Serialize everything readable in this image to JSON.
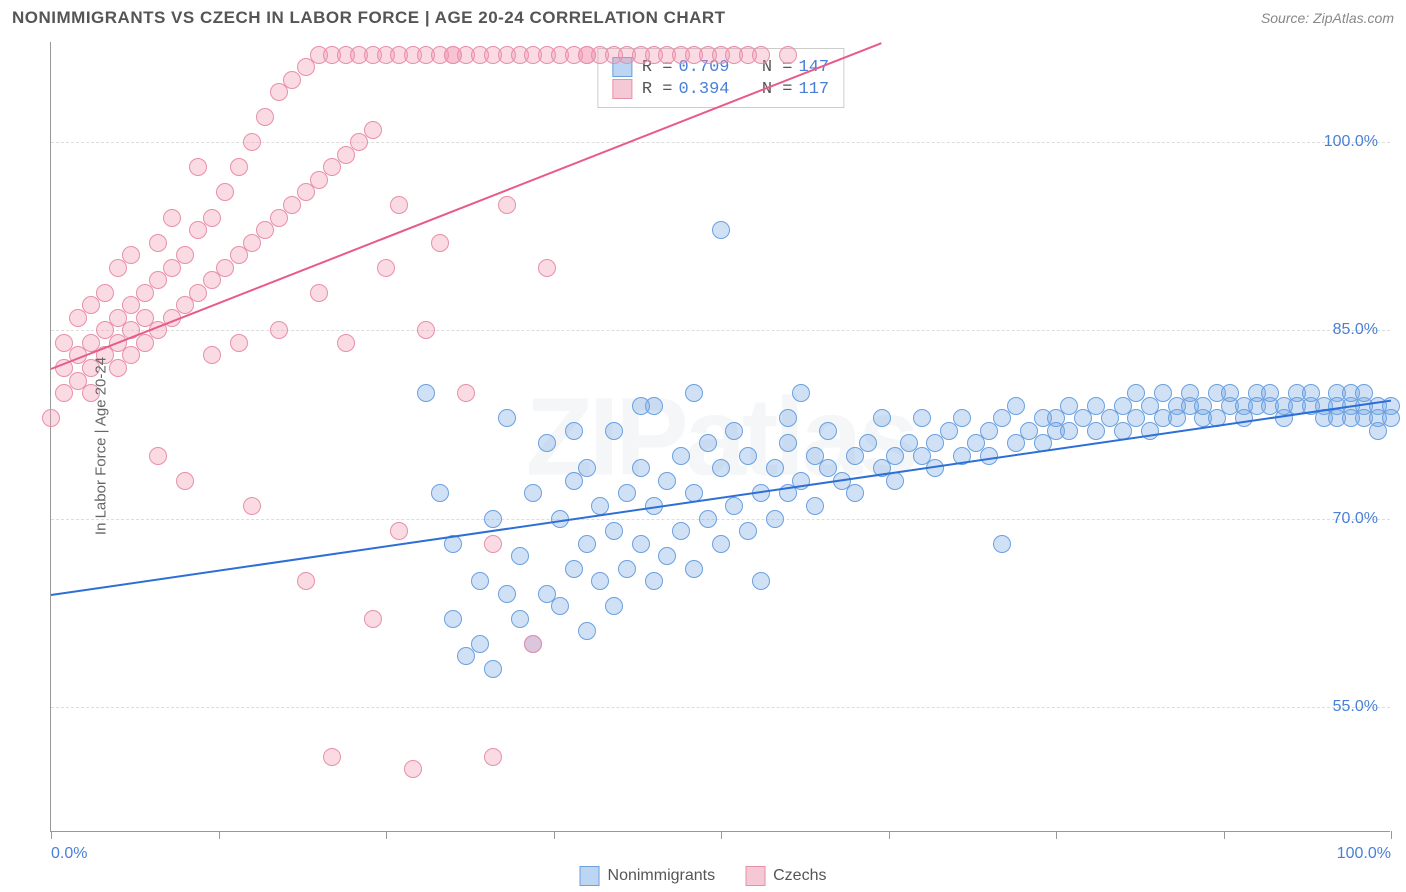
{
  "title": "NONIMMIGRANTS VS CZECH IN LABOR FORCE | AGE 20-24 CORRELATION CHART",
  "source": "Source: ZipAtlas.com",
  "ylabel": "In Labor Force | Age 20-24",
  "watermark": "ZIPatlas",
  "chart": {
    "type": "scatter",
    "xlim": [
      0,
      100
    ],
    "ylim": [
      45,
      108
    ],
    "y_gridlines": [
      55,
      70,
      85,
      100
    ],
    "y_tick_labels": [
      "55.0%",
      "70.0%",
      "85.0%",
      "100.0%"
    ],
    "x_ticks": [
      0,
      12.5,
      25,
      37.5,
      50,
      62.5,
      75,
      87.5,
      100
    ],
    "x_tick_labels": {
      "0": "0.0%",
      "100": "100.0%"
    },
    "point_radius": 9,
    "background_color": "#ffffff",
    "grid_color": "#dddddd",
    "axis_color": "#999999",
    "label_color": "#4a7fd8",
    "series": [
      {
        "name": "Nonimmigrants",
        "fill": "rgba(120,170,230,0.35)",
        "stroke": "#6aa0e0",
        "swatch_fill": "#bcd5f2",
        "swatch_stroke": "#6aa0e0",
        "trend_color": "#2d6fd6",
        "R": "0.709",
        "N": "147",
        "trend": {
          "x1": 0,
          "y1": 64,
          "x2": 100,
          "y2": 79.5
        },
        "points": [
          [
            28,
            80
          ],
          [
            29,
            72
          ],
          [
            30,
            62
          ],
          [
            30,
            68
          ],
          [
            31,
            59
          ],
          [
            32,
            60
          ],
          [
            32,
            65
          ],
          [
            33,
            58
          ],
          [
            33,
            70
          ],
          [
            34,
            64
          ],
          [
            34,
            78
          ],
          [
            35,
            62
          ],
          [
            35,
            67
          ],
          [
            36,
            60
          ],
          [
            36,
            72
          ],
          [
            37,
            64
          ],
          [
            37,
            76
          ],
          [
            38,
            63
          ],
          [
            38,
            70
          ],
          [
            39,
            66
          ],
          [
            39,
            73
          ],
          [
            40,
            61
          ],
          [
            40,
            68
          ],
          [
            40,
            74
          ],
          [
            41,
            65
          ],
          [
            41,
            71
          ],
          [
            42,
            63
          ],
          [
            42,
            69
          ],
          [
            42,
            77
          ],
          [
            43,
            66
          ],
          [
            43,
            72
          ],
          [
            44,
            68
          ],
          [
            44,
            74
          ],
          [
            45,
            65
          ],
          [
            45,
            71
          ],
          [
            45,
            79
          ],
          [
            46,
            67
          ],
          [
            46,
            73
          ],
          [
            47,
            69
          ],
          [
            47,
            75
          ],
          [
            48,
            66
          ],
          [
            48,
            72
          ],
          [
            49,
            70
          ],
          [
            49,
            76
          ],
          [
            50,
            68
          ],
          [
            50,
            74
          ],
          [
            51,
            71
          ],
          [
            51,
            77
          ],
          [
            52,
            69
          ],
          [
            52,
            75
          ],
          [
            53,
            72
          ],
          [
            53,
            65
          ],
          [
            54,
            74
          ],
          [
            54,
            70
          ],
          [
            55,
            76
          ],
          [
            55,
            72
          ],
          [
            56,
            73
          ],
          [
            57,
            75
          ],
          [
            57,
            71
          ],
          [
            58,
            74
          ],
          [
            58,
            77
          ],
          [
            59,
            73
          ],
          [
            60,
            75
          ],
          [
            60,
            72
          ],
          [
            61,
            76
          ],
          [
            62,
            74
          ],
          [
            62,
            78
          ],
          [
            63,
            75
          ],
          [
            63,
            73
          ],
          [
            64,
            76
          ],
          [
            65,
            75
          ],
          [
            65,
            78
          ],
          [
            66,
            76
          ],
          [
            66,
            74
          ],
          [
            67,
            77
          ],
          [
            68,
            75
          ],
          [
            68,
            78
          ],
          [
            69,
            76
          ],
          [
            70,
            77
          ],
          [
            70,
            75
          ],
          [
            71,
            78
          ],
          [
            71,
            68
          ],
          [
            72,
            76
          ],
          [
            72,
            79
          ],
          [
            73,
            77
          ],
          [
            74,
            78
          ],
          [
            74,
            76
          ],
          [
            75,
            78
          ],
          [
            75,
            77
          ],
          [
            76,
            79
          ],
          [
            76,
            77
          ],
          [
            77,
            78
          ],
          [
            78,
            79
          ],
          [
            78,
            77
          ],
          [
            79,
            78
          ],
          [
            80,
            79
          ],
          [
            80,
            77
          ],
          [
            81,
            78
          ],
          [
            81,
            80
          ],
          [
            82,
            79
          ],
          [
            82,
            77
          ],
          [
            83,
            78
          ],
          [
            83,
            80
          ],
          [
            84,
            79
          ],
          [
            84,
            78
          ],
          [
            85,
            79
          ],
          [
            85,
            80
          ],
          [
            86,
            78
          ],
          [
            86,
            79
          ],
          [
            87,
            80
          ],
          [
            87,
            78
          ],
          [
            88,
            79
          ],
          [
            88,
            80
          ],
          [
            89,
            79
          ],
          [
            89,
            78
          ],
          [
            90,
            80
          ],
          [
            90,
            79
          ],
          [
            91,
            79
          ],
          [
            91,
            80
          ],
          [
            92,
            79
          ],
          [
            92,
            78
          ],
          [
            93,
            80
          ],
          [
            93,
            79
          ],
          [
            94,
            79
          ],
          [
            94,
            80
          ],
          [
            95,
            79
          ],
          [
            95,
            78
          ],
          [
            96,
            80
          ],
          [
            96,
            79
          ],
          [
            96,
            78
          ],
          [
            97,
            79
          ],
          [
            97,
            80
          ],
          [
            97,
            78
          ],
          [
            98,
            79
          ],
          [
            98,
            78
          ],
          [
            98,
            80
          ],
          [
            99,
            79
          ],
          [
            99,
            78
          ],
          [
            99,
            77
          ],
          [
            100,
            79
          ],
          [
            100,
            78
          ],
          [
            48,
            80
          ],
          [
            50,
            93
          ],
          [
            39,
            77
          ],
          [
            44,
            79
          ],
          [
            55,
            78
          ],
          [
            56,
            80
          ]
        ]
      },
      {
        "name": "Czechs",
        "fill": "rgba(240,150,175,0.35)",
        "stroke": "#e890a8",
        "swatch_fill": "#f5c8d5",
        "swatch_stroke": "#e890a8",
        "trend_color": "#e85a8a",
        "R": "0.394",
        "N": "117",
        "trend": {
          "x1": 0,
          "y1": 82,
          "x2": 62,
          "y2": 108
        },
        "points": [
          [
            0,
            78
          ],
          [
            1,
            82
          ],
          [
            1,
            84
          ],
          [
            1,
            80
          ],
          [
            2,
            83
          ],
          [
            2,
            86
          ],
          [
            2,
            81
          ],
          [
            3,
            84
          ],
          [
            3,
            82
          ],
          [
            3,
            87
          ],
          [
            3,
            80
          ],
          [
            4,
            85
          ],
          [
            4,
            83
          ],
          [
            4,
            88
          ],
          [
            5,
            84
          ],
          [
            5,
            86
          ],
          [
            5,
            82
          ],
          [
            5,
            90
          ],
          [
            6,
            85
          ],
          [
            6,
            87
          ],
          [
            6,
            83
          ],
          [
            6,
            91
          ],
          [
            7,
            86
          ],
          [
            7,
            88
          ],
          [
            7,
            84
          ],
          [
            8,
            89
          ],
          [
            8,
            85
          ],
          [
            8,
            92
          ],
          [
            8,
            75
          ],
          [
            9,
            90
          ],
          [
            9,
            86
          ],
          [
            9,
            94
          ],
          [
            10,
            91
          ],
          [
            10,
            87
          ],
          [
            10,
            73
          ],
          [
            11,
            93
          ],
          [
            11,
            88
          ],
          [
            11,
            98
          ],
          [
            12,
            94
          ],
          [
            12,
            89
          ],
          [
            12,
            83
          ],
          [
            13,
            96
          ],
          [
            13,
            90
          ],
          [
            14,
            98
          ],
          [
            14,
            91
          ],
          [
            14,
            84
          ],
          [
            15,
            100
          ],
          [
            15,
            92
          ],
          [
            15,
            71
          ],
          [
            16,
            102
          ],
          [
            16,
            93
          ],
          [
            17,
            104
          ],
          [
            17,
            94
          ],
          [
            17,
            85
          ],
          [
            18,
            105
          ],
          [
            18,
            95
          ],
          [
            19,
            106
          ],
          [
            19,
            96
          ],
          [
            19,
            65
          ],
          [
            20,
            107
          ],
          [
            20,
            97
          ],
          [
            20,
            88
          ],
          [
            21,
            107
          ],
          [
            21,
            98
          ],
          [
            21,
            51
          ],
          [
            22,
            107
          ],
          [
            22,
            99
          ],
          [
            22,
            84
          ],
          [
            23,
            107
          ],
          [
            23,
            100
          ],
          [
            24,
            107
          ],
          [
            24,
            101
          ],
          [
            24,
            62
          ],
          [
            25,
            107
          ],
          [
            25,
            90
          ],
          [
            26,
            107
          ],
          [
            26,
            95
          ],
          [
            26,
            69
          ],
          [
            27,
            107
          ],
          [
            27,
            50
          ],
          [
            28,
            107
          ],
          [
            28,
            85
          ],
          [
            29,
            107
          ],
          [
            29,
            92
          ],
          [
            30,
            107
          ],
          [
            30,
            107
          ],
          [
            31,
            107
          ],
          [
            31,
            80
          ],
          [
            32,
            107
          ],
          [
            33,
            107
          ],
          [
            33,
            68
          ],
          [
            33,
            51
          ],
          [
            34,
            107
          ],
          [
            34,
            95
          ],
          [
            35,
            107
          ],
          [
            36,
            107
          ],
          [
            36,
            60
          ],
          [
            37,
            107
          ],
          [
            37,
            90
          ],
          [
            38,
            107
          ],
          [
            39,
            107
          ],
          [
            40,
            107
          ],
          [
            40,
            107
          ],
          [
            41,
            107
          ],
          [
            42,
            107
          ],
          [
            43,
            107
          ],
          [
            44,
            107
          ],
          [
            45,
            107
          ],
          [
            46,
            107
          ],
          [
            47,
            107
          ],
          [
            48,
            107
          ],
          [
            49,
            107
          ],
          [
            50,
            107
          ],
          [
            51,
            107
          ],
          [
            52,
            107
          ],
          [
            53,
            107
          ],
          [
            55,
            107
          ]
        ]
      }
    ]
  },
  "legend": {
    "items": [
      "Nonimmigrants",
      "Czechs"
    ]
  }
}
